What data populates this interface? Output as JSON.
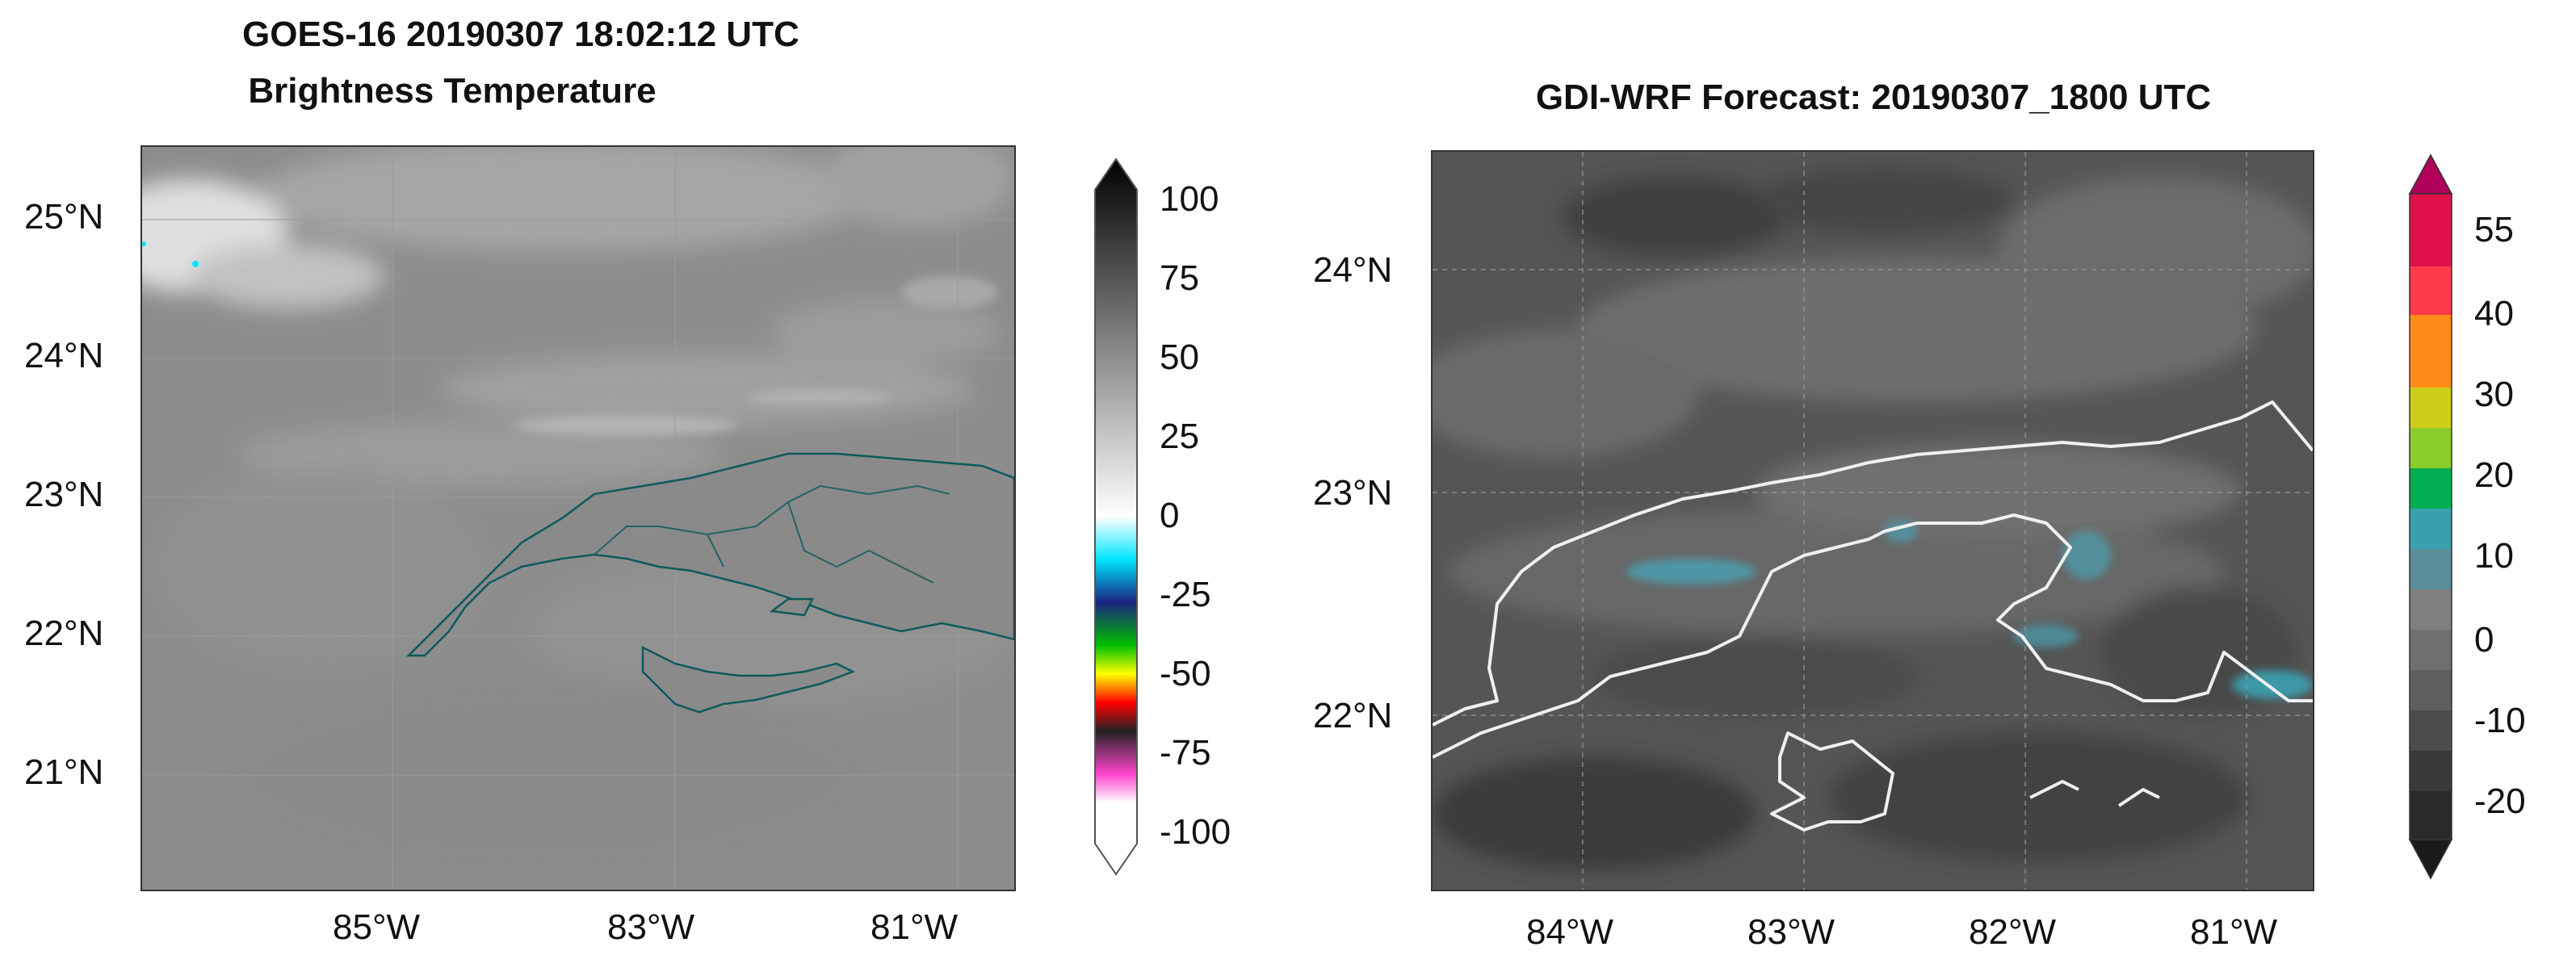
{
  "left_panel": {
    "title_line1": "GOES-16  20190307 18:02:12 UTC",
    "title_line2": "Brightness Temperature",
    "lat_labels": [
      "25°N",
      "24°N",
      "23°N",
      "22°N",
      "21°N"
    ],
    "lon_labels": [
      "85°W",
      "83°W",
      "81°W"
    ],
    "colorbar_ticks": [
      "100",
      "75",
      "50",
      "25",
      "0",
      "-25",
      "-50",
      "-75",
      "-100"
    ],
    "colorbar_colors": [
      "#000000",
      "#ffffff",
      "#00e5ff",
      "#1a237e",
      "#00c000",
      "#ffff00",
      "#ff0000",
      "#ff44cc"
    ]
  },
  "right_panel": {
    "title": "GDI-WRF  Forecast: 20190307_1800 UTC",
    "lat_labels": [
      "24°N",
      "23°N",
      "22°N"
    ],
    "lon_labels": [
      "84°W",
      "83°W",
      "82°W",
      "81°W"
    ],
    "colorbar_ticks": [
      "55",
      "40",
      "30",
      "20",
      "10",
      "0",
      "-10",
      "-20"
    ],
    "colorbar_colors": [
      "#b0005a",
      "#ff1a4a",
      "#ff8c00",
      "#cdcd00",
      "#00b050",
      "#3aa0b0",
      "#7f7f7f",
      "#6a6a6a",
      "#4f4f4f",
      "#2c2c2c"
    ]
  }
}
